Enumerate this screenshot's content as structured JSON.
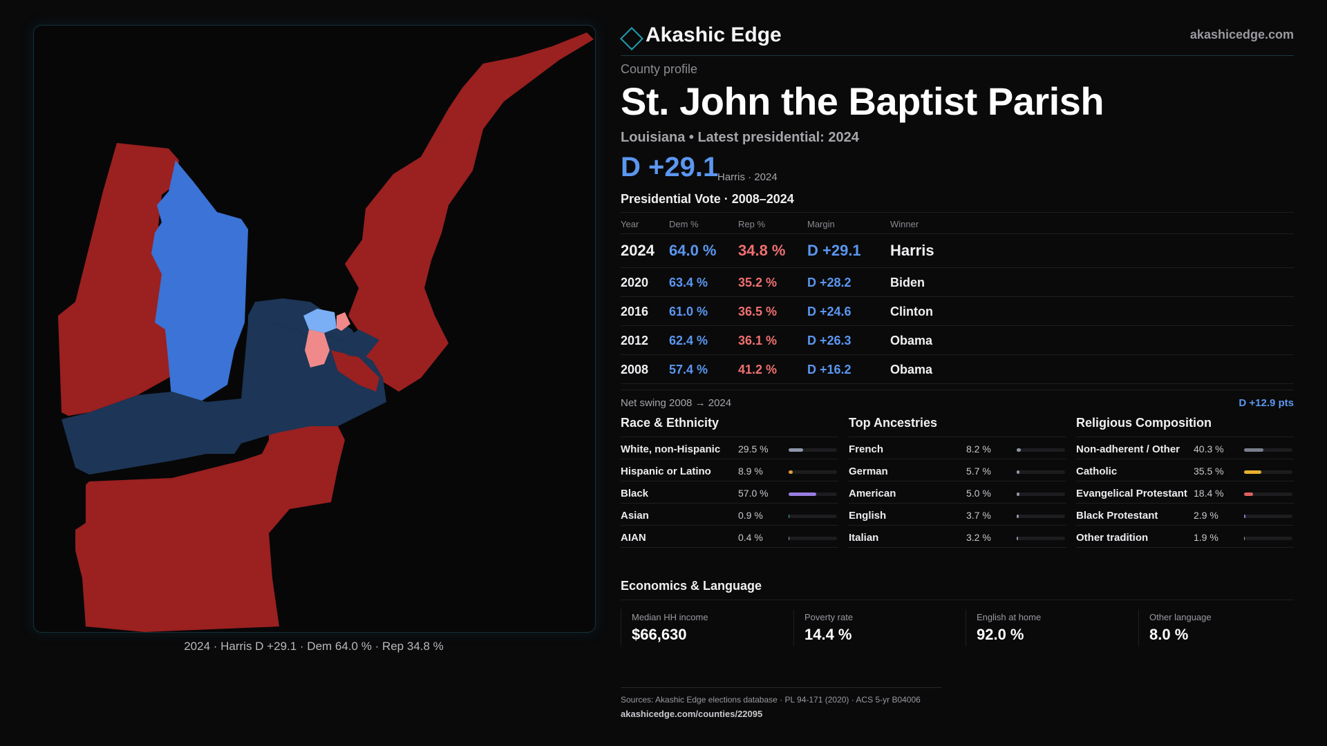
{
  "map": {
    "caption": "2024 · Harris D +29.1 · Dem 64.0 % · Rep 34.8 %",
    "colors": {
      "rep": "#9b2020",
      "dem": "#3b73d6",
      "dem_dark": "#1d3556",
      "rep_light": "#f08a8a",
      "dem_light": "#7aaef5"
    }
  },
  "brand": {
    "name": "Akashic Edge",
    "url": "akashicedge.com",
    "accent": "#1ea0b0"
  },
  "county": {
    "eyebrow": "County profile",
    "name": "St. John the Baptist Parish",
    "subtitle": "Louisiana • Latest presidential: 2024",
    "margin": "D +29.1",
    "margin_note": "Harris · 2024"
  },
  "vote": {
    "heading": "Presidential Vote · 2008–2024",
    "columns": [
      "Year",
      "Dem %",
      "Rep %",
      "Margin",
      "Winner"
    ],
    "rows": [
      {
        "year": "2024",
        "dem": "64.0 %",
        "rep": "34.8 %",
        "margin": "D +29.1",
        "winner": "Harris"
      },
      {
        "year": "2020",
        "dem": "63.4 %",
        "rep": "35.2 %",
        "margin": "D +28.2",
        "winner": "Biden"
      },
      {
        "year": "2016",
        "dem": "61.0 %",
        "rep": "36.5 %",
        "margin": "D +24.6",
        "winner": "Clinton"
      },
      {
        "year": "2012",
        "dem": "62.4 %",
        "rep": "36.1 %",
        "margin": "D +26.3",
        "winner": "Obama"
      },
      {
        "year": "2008",
        "dem": "57.4 %",
        "rep": "41.2 %",
        "margin": "D +16.2",
        "winner": "Obama"
      }
    ],
    "swing_label": "Net swing 2008 → 2024",
    "swing_value": "D +12.9 pts"
  },
  "race": {
    "heading": "Race & Ethnicity",
    "items": [
      {
        "name": "White, non-Hispanic",
        "pct": "29.5 %",
        "value": 29.5,
        "color": "#8e96a8"
      },
      {
        "name": "Hispanic or Latino",
        "pct": "8.9 %",
        "value": 8.9,
        "color": "#e0a030"
      },
      {
        "name": "Black",
        "pct": "57.0 %",
        "value": 57.0,
        "color": "#9a7ee0"
      },
      {
        "name": "Asian",
        "pct": "0.9 %",
        "value": 0.9,
        "color": "#3bb0a0"
      },
      {
        "name": "AIAN",
        "pct": "0.4 %",
        "value": 0.4,
        "color": "#8e96a8"
      }
    ]
  },
  "ancestry": {
    "heading": "Top Ancestries",
    "items": [
      {
        "name": "French",
        "pct": "8.2 %",
        "value": 8.2,
        "color": "#8e96a8"
      },
      {
        "name": "German",
        "pct": "5.7 %",
        "value": 5.7,
        "color": "#8e96a8"
      },
      {
        "name": "American",
        "pct": "5.0 %",
        "value": 5.0,
        "color": "#8e96a8"
      },
      {
        "name": "English",
        "pct": "3.7 %",
        "value": 3.7,
        "color": "#8e96a8"
      },
      {
        "name": "Italian",
        "pct": "3.2 %",
        "value": 3.2,
        "color": "#8e96a8"
      }
    ]
  },
  "religion": {
    "heading": "Religious Composition",
    "items": [
      {
        "name": "Non-adherent / Other",
        "pct": "40.3 %",
        "value": 40.3,
        "color": "#7a7f8c"
      },
      {
        "name": "Catholic",
        "pct": "35.5 %",
        "value": 35.5,
        "color": "#e8b030"
      },
      {
        "name": "Evangelical Protestant",
        "pct": "18.4 %",
        "value": 18.4,
        "color": "#e06060"
      },
      {
        "name": "Black Protestant",
        "pct": "2.9 %",
        "value": 2.9,
        "color": "#8a7ee0"
      },
      {
        "name": "Other tradition",
        "pct": "1.9 %",
        "value": 1.9,
        "color": "#8e96a8"
      }
    ]
  },
  "economics": {
    "heading": "Economics & Language",
    "cards": [
      {
        "label": "Median HH income",
        "value": "$66,630"
      },
      {
        "label": "Poverty rate",
        "value": "14.4 %"
      },
      {
        "label": "English at home",
        "value": "92.0 %"
      },
      {
        "label": "Other language",
        "value": "8.0 %"
      }
    ]
  },
  "sources": {
    "line1": "Sources: Akashic Edge elections database · PL 94-171 (2020) · ACS 5-yr B04006",
    "line2": "akashicedge.com/counties/22095"
  }
}
